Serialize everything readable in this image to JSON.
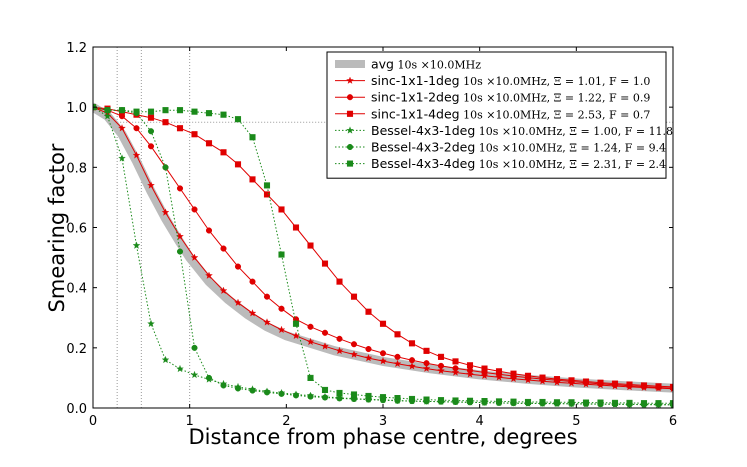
{
  "chart_data": {
    "type": "line",
    "title": "",
    "xlabel": "Distance from phase centre, degrees",
    "ylabel": "Smearing factor",
    "xlim": [
      0,
      6
    ],
    "ylim": [
      0,
      1.2
    ],
    "xticks": [
      "0",
      "1",
      "2",
      "3",
      "4",
      "5",
      "6"
    ],
    "yticks": [
      "0.0",
      "0.2",
      "0.4",
      "0.6",
      "0.8",
      "1.0",
      "1.2"
    ],
    "legend_position": "top-right",
    "reference_lines": {
      "vertical_x": [
        0.25,
        0.5,
        1.0
      ],
      "horizontal_y": 0.95
    },
    "series": [
      {
        "name": "avg",
        "extra": "10s ×10.0MHz",
        "color": "#bbbbbb",
        "style": "thick-band",
        "marker": "none",
        "x": [
          0,
          0.15,
          0.3,
          0.45,
          0.6,
          0.75,
          0.9,
          1.0,
          1.2,
          1.4,
          1.6,
          1.8,
          2.0,
          2.5,
          3.0,
          3.5,
          4.0,
          4.5,
          5.0,
          5.5,
          6.0
        ],
        "y": [
          1.0,
          0.97,
          0.91,
          0.82,
          0.72,
          0.63,
          0.55,
          0.5,
          0.42,
          0.36,
          0.31,
          0.27,
          0.24,
          0.19,
          0.155,
          0.13,
          0.11,
          0.095,
          0.083,
          0.074,
          0.066
        ]
      },
      {
        "name": "sinc-1x1-1deg",
        "extra": "10s ×10.0MHz,  Ξ = 1.01,  F = 1.0",
        "color": "#e00000",
        "style": "solid",
        "marker": "star",
        "x": [
          0,
          0.15,
          0.3,
          0.45,
          0.6,
          0.75,
          0.9,
          1.05,
          1.2,
          1.35,
          1.5,
          1.65,
          1.8,
          1.95,
          2.1,
          2.25,
          2.4,
          2.55,
          2.7,
          2.85,
          3.0,
          3.15,
          3.3,
          3.45,
          3.6,
          3.75,
          3.9,
          4.05,
          4.2,
          4.35,
          4.5,
          4.65,
          4.8,
          4.95,
          5.1,
          5.25,
          5.4,
          5.55,
          5.7,
          5.85,
          6.0
        ],
        "y": [
          1.0,
          0.98,
          0.93,
          0.84,
          0.74,
          0.65,
          0.57,
          0.5,
          0.44,
          0.39,
          0.35,
          0.315,
          0.285,
          0.26,
          0.24,
          0.22,
          0.205,
          0.19,
          0.178,
          0.166,
          0.156,
          0.147,
          0.139,
          0.131,
          0.124,
          0.118,
          0.112,
          0.107,
          0.102,
          0.097,
          0.093,
          0.089,
          0.085,
          0.082,
          0.079,
          0.076,
          0.073,
          0.07,
          0.068,
          0.066,
          0.064
        ]
      },
      {
        "name": "sinc-1x1-2deg",
        "extra": "10s ×10.0MHz,  Ξ = 1.22,  F = 0.9",
        "color": "#e00000",
        "style": "solid",
        "marker": "circle",
        "x": [
          0,
          0.15,
          0.3,
          0.45,
          0.6,
          0.75,
          0.9,
          1.05,
          1.2,
          1.35,
          1.5,
          1.65,
          1.8,
          1.95,
          2.1,
          2.25,
          2.4,
          2.55,
          2.7,
          2.85,
          3.0,
          3.15,
          3.3,
          3.45,
          3.6,
          3.75,
          3.9,
          4.05,
          4.2,
          4.35,
          4.5,
          4.65,
          4.8,
          4.95,
          5.1,
          5.25,
          5.4,
          5.55,
          5.7,
          5.85,
          6.0
        ],
        "y": [
          1.0,
          0.99,
          0.97,
          0.93,
          0.87,
          0.8,
          0.73,
          0.66,
          0.59,
          0.53,
          0.47,
          0.42,
          0.37,
          0.33,
          0.295,
          0.27,
          0.25,
          0.23,
          0.212,
          0.196,
          0.182,
          0.17,
          0.159,
          0.149,
          0.14,
          0.132,
          0.125,
          0.118,
          0.112,
          0.106,
          0.101,
          0.096,
          0.092,
          0.088,
          0.084,
          0.08,
          0.077,
          0.074,
          0.071,
          0.068,
          0.066
        ]
      },
      {
        "name": "sinc-1x1-4deg",
        "extra": "10s ×10.0MHz,  Ξ = 2.53,  F = 0.7",
        "color": "#e00000",
        "style": "solid",
        "marker": "square",
        "x": [
          0,
          0.15,
          0.3,
          0.45,
          0.6,
          0.75,
          0.9,
          1.05,
          1.2,
          1.35,
          1.5,
          1.65,
          1.8,
          1.95,
          2.1,
          2.25,
          2.4,
          2.55,
          2.7,
          2.85,
          3.0,
          3.15,
          3.3,
          3.45,
          3.6,
          3.75,
          3.9,
          4.05,
          4.2,
          4.35,
          4.5,
          4.65,
          4.8,
          4.95,
          5.1,
          5.25,
          5.4,
          5.55,
          5.7,
          5.85,
          6.0
        ],
        "y": [
          1.0,
          0.995,
          0.985,
          0.975,
          0.965,
          0.95,
          0.93,
          0.91,
          0.88,
          0.85,
          0.81,
          0.76,
          0.71,
          0.66,
          0.6,
          0.54,
          0.48,
          0.42,
          0.37,
          0.32,
          0.28,
          0.245,
          0.215,
          0.19,
          0.17,
          0.155,
          0.142,
          0.131,
          0.122,
          0.114,
          0.107,
          0.101,
          0.096,
          0.092,
          0.088,
          0.084,
          0.081,
          0.078,
          0.075,
          0.072,
          0.07
        ]
      },
      {
        "name": "Bessel-4x3-1deg",
        "extra": "10s ×10.0MHz,  Ξ = 1.00,  F = 11.8",
        "color": "#1a8a1a",
        "style": "dotted",
        "marker": "star",
        "x": [
          0,
          0.15,
          0.3,
          0.45,
          0.6,
          0.75,
          0.9,
          1.05,
          1.2,
          1.35,
          1.5,
          1.65,
          1.8,
          1.95,
          2.1,
          2.25,
          2.4,
          2.55,
          2.7,
          2.85,
          3.0,
          3.15,
          3.3,
          3.45,
          3.6,
          3.75,
          3.9,
          4.05,
          4.2,
          4.35,
          4.5,
          4.65,
          4.8,
          4.95,
          5.1,
          5.25,
          5.4,
          5.55,
          5.7,
          5.85,
          6.0
        ],
        "y": [
          1.0,
          0.97,
          0.83,
          0.54,
          0.28,
          0.16,
          0.13,
          0.11,
          0.095,
          0.08,
          0.07,
          0.062,
          0.055,
          0.05,
          0.045,
          0.041,
          0.037,
          0.034,
          0.031,
          0.029,
          0.027,
          0.025,
          0.023,
          0.022,
          0.021,
          0.02,
          0.019,
          0.018,
          0.017,
          0.016,
          0.015,
          0.015,
          0.014,
          0.014,
          0.013,
          0.013,
          0.012,
          0.012,
          0.011,
          0.011,
          0.01
        ]
      },
      {
        "name": "Bessel-4x3-2deg",
        "extra": "10s ×10.0MHz,  Ξ = 1.24,  F = 9.4",
        "color": "#1a8a1a",
        "style": "dotted",
        "marker": "circle",
        "x": [
          0,
          0.15,
          0.3,
          0.45,
          0.6,
          0.75,
          0.9,
          1.05,
          1.2,
          1.35,
          1.5,
          1.65,
          1.8,
          1.95,
          2.1,
          2.25,
          2.4,
          2.55,
          2.7,
          2.85,
          3.0,
          3.15,
          3.3,
          3.45,
          3.6,
          3.75,
          3.9,
          4.05,
          4.2,
          4.35,
          4.5,
          4.65,
          4.8,
          4.95,
          5.1,
          5.25,
          5.4,
          5.55,
          5.7,
          5.85,
          6.0
        ],
        "y": [
          1.0,
          0.99,
          0.99,
          0.98,
          0.92,
          0.8,
          0.52,
          0.2,
          0.1,
          0.075,
          0.065,
          0.058,
          0.052,
          0.047,
          0.042,
          0.038,
          0.035,
          0.032,
          0.03,
          0.028,
          0.026,
          0.024,
          0.023,
          0.022,
          0.021,
          0.02,
          0.019,
          0.018,
          0.017,
          0.016,
          0.016,
          0.015,
          0.015,
          0.014,
          0.014,
          0.013,
          0.013,
          0.012,
          0.012,
          0.012,
          0.011
        ]
      },
      {
        "name": "Bessel-4x3-4deg",
        "extra": "10s ×10.0MHz,  Ξ = 2.31,  F = 2.4",
        "color": "#1a8a1a",
        "style": "dotted",
        "marker": "square",
        "x": [
          0,
          0.15,
          0.3,
          0.45,
          0.6,
          0.75,
          0.9,
          1.05,
          1.2,
          1.35,
          1.5,
          1.65,
          1.8,
          1.95,
          2.1,
          2.25,
          2.4,
          2.55,
          2.7,
          2.85,
          3.0,
          3.15,
          3.3,
          3.45,
          3.6,
          3.75,
          3.9,
          4.05,
          4.2,
          4.35,
          4.5,
          4.65,
          4.8,
          4.95,
          5.1,
          5.25,
          5.4,
          5.55,
          5.7,
          5.85,
          6.0
        ],
        "y": [
          1.0,
          0.99,
          0.99,
          0.985,
          0.985,
          0.99,
          0.99,
          0.985,
          0.98,
          0.975,
          0.96,
          0.9,
          0.74,
          0.51,
          0.28,
          0.1,
          0.06,
          0.05,
          0.045,
          0.04,
          0.036,
          0.033,
          0.03,
          0.028,
          0.026,
          0.025,
          0.024,
          0.023,
          0.022,
          0.021,
          0.02,
          0.02,
          0.019,
          0.019,
          0.018,
          0.018,
          0.017,
          0.017,
          0.016,
          0.016,
          0.016
        ]
      }
    ]
  }
}
